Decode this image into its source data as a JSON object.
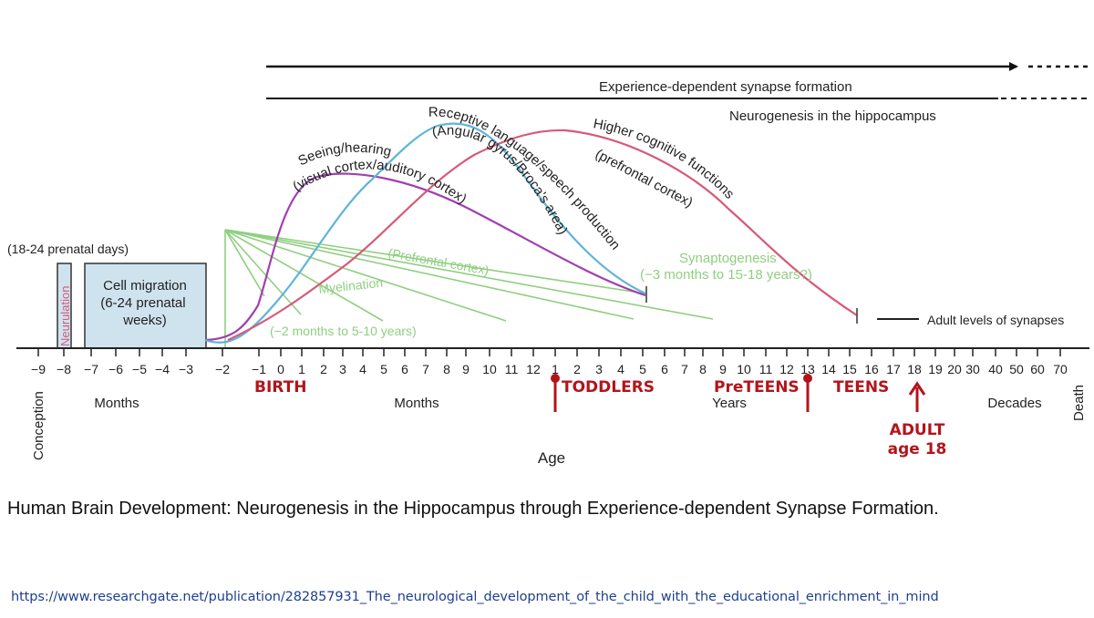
{
  "chart_data": {
    "type": "timeline",
    "title": "Human Brain Development",
    "xlabel": "Age",
    "x_ticks": [
      "−9",
      "−8",
      "−7",
      "−6",
      "−5",
      "−4",
      "−3",
      "−2",
      "−1",
      "0",
      "1",
      "2",
      "3",
      "4",
      "5",
      "6",
      "7",
      "8",
      "9",
      "10",
      "11",
      "12",
      "1",
      "2",
      "3",
      "4",
      "5",
      "6",
      "7",
      "8",
      "9",
      "10",
      "11",
      "12",
      "13",
      "14",
      "15",
      "16",
      "17",
      "18",
      "19",
      "20",
      "30",
      "40",
      "50",
      "60",
      "70"
    ],
    "unit_labels": [
      "Months",
      "Months",
      "Years",
      "Decades"
    ],
    "side_labels": {
      "left": "Conception",
      "right": "Death"
    },
    "arrows": [
      {
        "label": "Experience-dependent synapse formation",
        "from": "−2",
        "to": "70+"
      },
      {
        "label": "Neurogenesis in the hippocampus",
        "from": "−2",
        "to": "70+"
      }
    ],
    "prenatal_boxes": [
      {
        "label": "Neurulation",
        "note": "(18-24 prenatal days)",
        "from": "−8",
        "to": "−8"
      },
      {
        "label": "Cell migration",
        "detail": "(6-24 prenatal weeks)",
        "from": "−7",
        "to": "−3"
      }
    ],
    "curves": [
      {
        "name": "Seeing/hearing",
        "detail": "(visual cortex/auditory cortex)",
        "color": "#a040b0",
        "peak": "3 months"
      },
      {
        "name": "Receptive language/speech production",
        "detail": "(Angular gyrus/Broca's area)",
        "color": "#5fb4d8",
        "peak": "8 months"
      },
      {
        "name": "Higher cognitive functions",
        "detail": "(prefrontal cortex)",
        "color": "#d65a78",
        "peak": "2 years"
      }
    ],
    "green_annotations": [
      {
        "name": "Synaptogenesis",
        "detail": "(−3 months to 15-18 years?)"
      },
      {
        "name": "(Prefrontal cortex)"
      },
      {
        "name": "Myelination",
        "detail": "(−2 months to 5-10 years)"
      }
    ],
    "adult_label": "Adult levels of synapses",
    "stage_labels": [
      {
        "text": "BIRTH"
      },
      {
        "text": "TODDLERS"
      },
      {
        "text": "PreTEENS"
      },
      {
        "text": "TEENS"
      },
      {
        "text": "ADULT",
        "text2": "age 18"
      }
    ],
    "colors": {
      "seeing": "#a040b0",
      "language": "#5fb4d8",
      "cognitive": "#d65a78",
      "myelination": "#8fcf80",
      "stage": "#b3141b",
      "box_fill": "#cfe3ef"
    }
  },
  "caption": "Human Brain Development: Neurogenesis in the Hippocampus through Experience-dependent Synapse Formation.",
  "source_url": "https://www.researchgate.net/publication/282857931_The_neurological_development_of_the_child_with_the_educational_enrichment_in_mind"
}
